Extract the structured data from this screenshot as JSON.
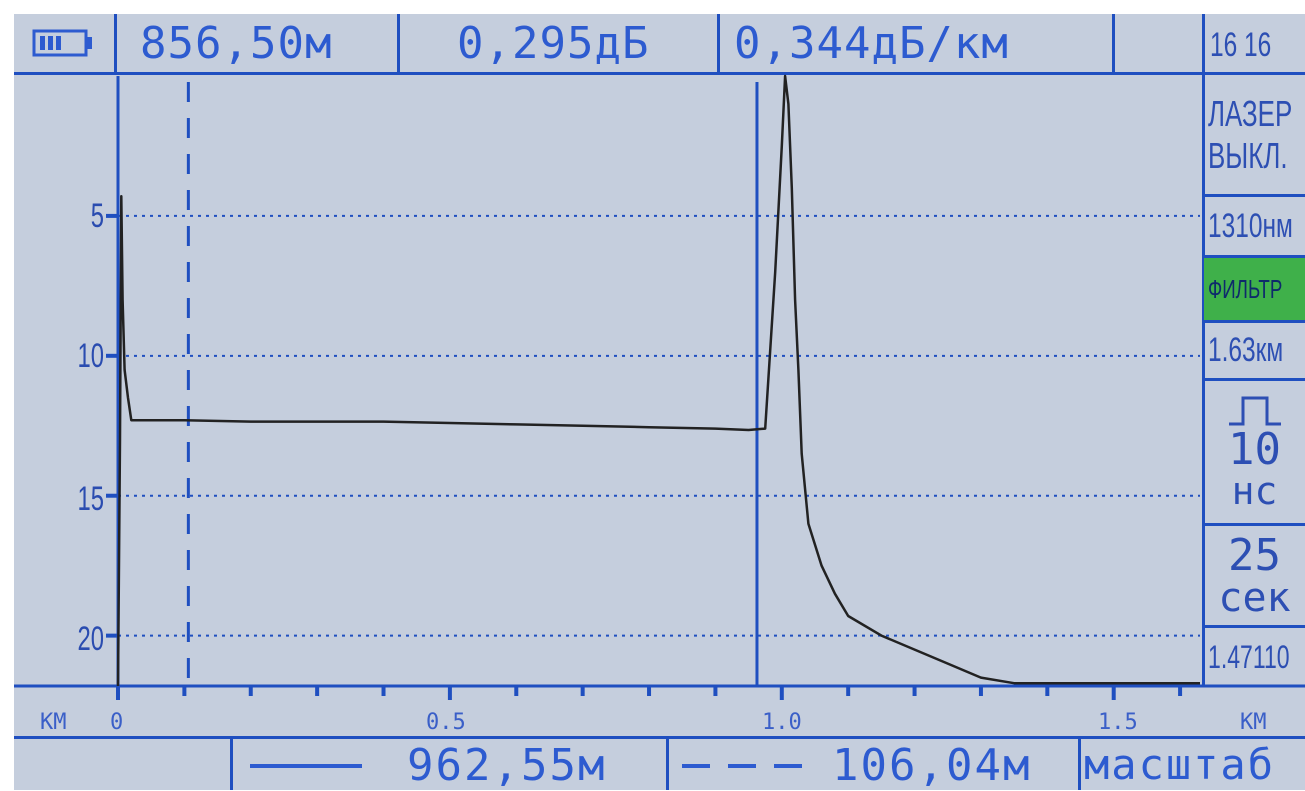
{
  "header": {
    "distance": "856,50м",
    "loss": "0,295дБ",
    "attenuation": "0,344дБ/км",
    "clock": "16 16"
  },
  "side_panel": {
    "laser_line1": "ЛАЗЕР",
    "laser_line2": "ВЫКЛ.",
    "wavelength": "1310нм",
    "filter": "ФИЛЬТР",
    "range": "1.63км",
    "pulse_value": "10",
    "pulse_unit": "нс",
    "time_value": "25",
    "time_unit": "сек",
    "refractive_index": "1.47110"
  },
  "bottom_bar": {
    "solid_cursor_distance": "962,55м",
    "dashed_cursor_distance": "106,04м",
    "scale_label": "масштаб"
  },
  "colors": {
    "screen_bg": "#c5cedd",
    "accent_blue": "#1f4fc0",
    "trace": "#222222",
    "filter_green": "#3fb04a"
  },
  "chart_data": {
    "type": "line",
    "xlabel": "КМ",
    "xlabel_right": "КМ",
    "x_ticks": [
      "0",
      "0.5",
      "1.0",
      "1.5"
    ],
    "y_ticks": [
      "5",
      "10",
      "15",
      "20"
    ],
    "xlim": [
      0,
      1.63
    ],
    "ylim": [
      0,
      21.8
    ],
    "y_inverted": true,
    "grid": "horizontal dotted",
    "cursors": {
      "solid_km": 0.9626,
      "dashed_km": 0.106
    },
    "series": [
      {
        "x": [
          0,
          0.003,
          0.005,
          0.007,
          0.01,
          0.015,
          0.02,
          0.03,
          0.05,
          0.1,
          0.2,
          0.3,
          0.4,
          0.5,
          0.6,
          0.7,
          0.8,
          0.9,
          0.95,
          0.975,
          0.99,
          1.0,
          1.005,
          1.01,
          1.015,
          1.02,
          1.025,
          1.03,
          1.04,
          1.06,
          1.08,
          1.1,
          1.15,
          1.2,
          1.25,
          1.3,
          1.35,
          1.4,
          1.5,
          1.63
        ],
        "values": [
          21.8,
          13.0,
          4.3,
          8.0,
          10.5,
          11.5,
          12.3,
          12.3,
          12.3,
          12.3,
          12.35,
          12.35,
          12.35,
          12.4,
          12.45,
          12.5,
          12.55,
          12.6,
          12.65,
          12.6,
          7.0,
          2.5,
          0,
          1.0,
          4.0,
          8.0,
          10.5,
          13.5,
          16.0,
          17.5,
          18.5,
          19.3,
          20.0,
          20.5,
          21.0,
          21.5,
          21.7,
          21.7,
          21.7,
          21.7
        ]
      }
    ]
  }
}
